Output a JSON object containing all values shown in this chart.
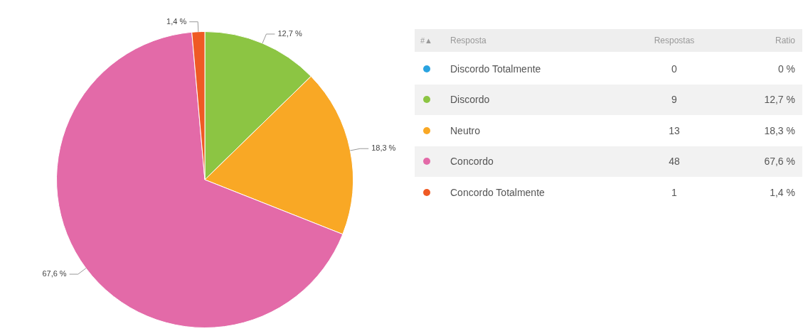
{
  "chart_data": [
    {
      "type": "pie",
      "categories": [
        "Discordo Totalmente",
        "Discordo",
        "Neutro",
        "Concordo",
        "Concordo Totalmente"
      ],
      "values": [
        0,
        12.7,
        18.3,
        67.6,
        1.4
      ],
      "colors": [
        "#2aa3e0",
        "#8cc543",
        "#f9a825",
        "#e36aa8",
        "#ef5a24"
      ],
      "value_labels": [
        "0 %",
        "12,7 %",
        "18,3 %",
        "67,6 %",
        "1,4 %"
      ],
      "annotations": [
        "#▲",
        "Resposta",
        "Ratio"
      ],
      "legend": "right"
    },
    {
      "type": "other",
      "title": "Respostas",
      "categories": [
        null,
        null,
        null,
        null,
        null
      ],
      "values": [
        0,
        9,
        13,
        48,
        1
      ],
      "data_labels": true
    }
  ]
}
